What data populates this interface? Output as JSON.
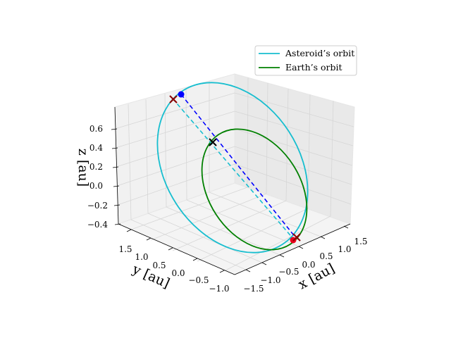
{
  "chart_data": {
    "type": "line",
    "projection": "3d",
    "grid": true,
    "legend_placement": "top-right",
    "axes": {
      "x": {
        "label": "x [au]",
        "ticks": [
          "−1.5",
          "−1.0",
          "−0.5",
          "0.0",
          "0.5",
          "1.0",
          "1.5"
        ]
      },
      "y": {
        "label": "y [au]",
        "ticks": [
          "1.5",
          "1.0",
          "0.5",
          "0.0",
          "−0.5",
          "−1.0"
        ]
      },
      "z": {
        "label": "z [au]",
        "ticks": [
          "0.6",
          "0.4",
          "0.2",
          "0.0",
          "−0.2",
          "−0.4"
        ]
      }
    },
    "series": [
      {
        "name": "Asteroid’s orbit",
        "color": "#17becf",
        "style": "solid"
      },
      {
        "name": "Earth’s orbit",
        "color": "#008000",
        "style": "solid"
      }
    ],
    "colors": {
      "line_of_nodes": "#0000ff",
      "marker_blue": "#0000ff",
      "marker_red": "#e8001c",
      "cross_dark_red": "#8b0000",
      "cross_black": "#000000"
    }
  }
}
